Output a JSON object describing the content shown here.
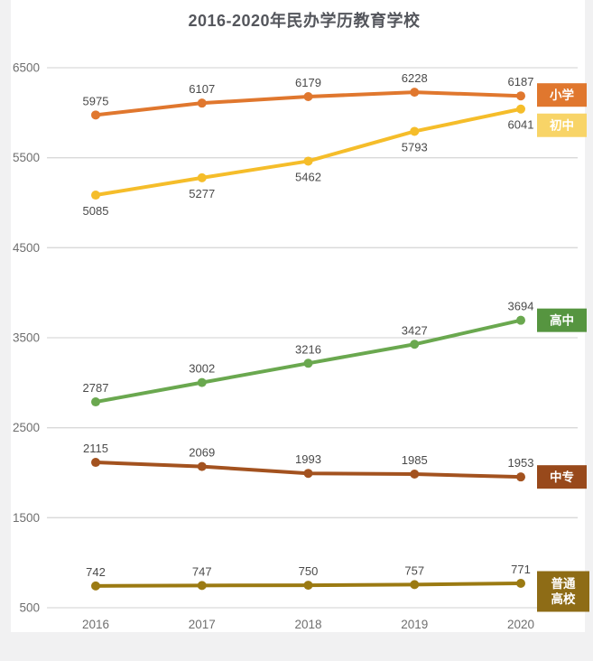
{
  "page": {
    "background": "#f1f1f2",
    "card_background": "#ffffff"
  },
  "chart_data": {
    "type": "line",
    "title": "2016-2020年民办学历教育学校",
    "title_color": "#54565c",
    "x": [
      "2016",
      "2017",
      "2018",
      "2019",
      "2020"
    ],
    "y_ticks": [
      6500,
      5500,
      4500,
      3500,
      2500,
      1500,
      500
    ],
    "ylim": [
      500,
      6500
    ],
    "grid": true,
    "grid_color": "#d9d9d9",
    "axis_color": "#6f6f6f",
    "label_color": "#4a4a4a",
    "legend_position": "right",
    "legend_text_color": "#ffffff",
    "series": [
      {
        "name": "小学",
        "values": [
          5975,
          6107,
          6179,
          6228,
          6187
        ],
        "color": "#e0772e",
        "legend_color": "#e0772e",
        "legend_lines": [
          "小学"
        ],
        "label_position": "above"
      },
      {
        "name": "初中",
        "values": [
          5085,
          5277,
          5462,
          5793,
          6041
        ],
        "color": "#f5bd2a",
        "legend_color": "#f8d467",
        "legend_lines": [
          "初中"
        ],
        "label_position": "below"
      },
      {
        "name": "高中",
        "values": [
          2787,
          3002,
          3216,
          3427,
          3694
        ],
        "color": "#6aa84f",
        "legend_color": "#569540",
        "legend_lines": [
          "高中"
        ],
        "label_position": "above"
      },
      {
        "name": "中专",
        "values": [
          2115,
          2069,
          1993,
          1985,
          1953
        ],
        "color": "#a3521f",
        "legend_color": "#98491b",
        "legend_lines": [
          "中专"
        ],
        "label_position": "above"
      },
      {
        "name": "普通高校",
        "values": [
          742,
          747,
          750,
          757,
          771
        ],
        "color": "#9b7a12",
        "legend_color": "#8e6c16",
        "legend_lines": [
          "普通",
          "高校"
        ],
        "label_position": "above"
      }
    ]
  }
}
